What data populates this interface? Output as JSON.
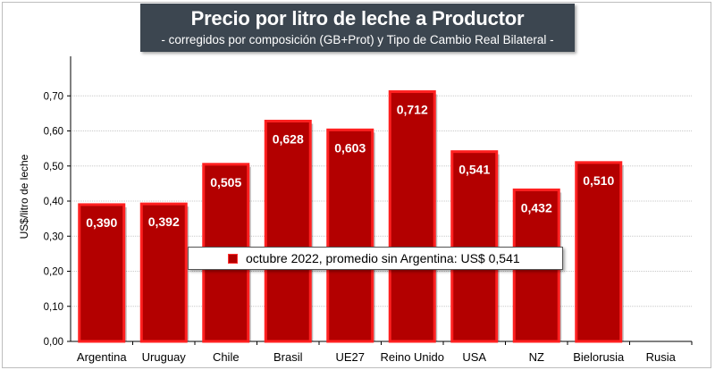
{
  "header": {
    "title": "Precio por litro de leche a Productor",
    "subtitle": "-  corregidos por composición (GB+Prot) y Tipo de Cambio Real Bilateral -"
  },
  "legend": {
    "label": "octubre 2022, promedio sin Argentina: US$ 0,541"
  },
  "colors": {
    "bar_fill": "#b30000",
    "bar_edge": "#ff2020",
    "title_bg": "#3c4650"
  },
  "chart_data": {
    "type": "bar",
    "ylabel": "US$/litro de leche",
    "ylim": [
      0,
      0.8
    ],
    "yticks": [
      "0,00",
      "0,10",
      "0,20",
      "0,30",
      "0,40",
      "0,50",
      "0,60",
      "0,70"
    ],
    "categories": [
      "Argentina",
      "Uruguay",
      "Chile",
      "Brasil",
      "UE27",
      "Reino Unido",
      "USA",
      "NZ",
      "Bielorusia",
      "Rusia"
    ],
    "series": [
      {
        "name": "octubre 2022, promedio sin Argentina: US$ 0,541",
        "values": [
          0.39,
          0.392,
          0.505,
          0.628,
          0.603,
          0.712,
          0.541,
          0.432,
          0.51,
          null
        ],
        "labels": [
          "0,390",
          "0,392",
          "0,505",
          "0,628",
          "0,603",
          "0,712",
          "0,541",
          "0,432",
          "0,510",
          ""
        ]
      }
    ],
    "grid": true,
    "legend_position": "center"
  }
}
